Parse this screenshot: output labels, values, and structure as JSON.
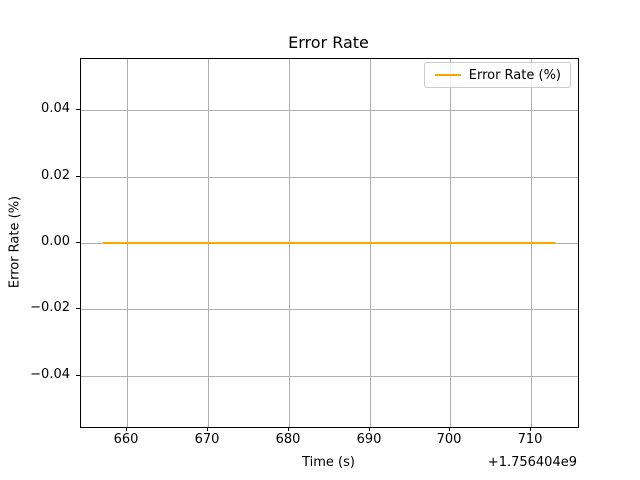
{
  "chart_data": {
    "type": "line",
    "title": "Error Rate",
    "xlabel": "Time (s)",
    "ylabel": "Error Rate (%)",
    "x_offset_text": "+1.756404e9",
    "xlim": [
      654.3,
      715.8
    ],
    "ylim": [
      -0.0555,
      0.0555
    ],
    "x_ticks": [
      660,
      670,
      680,
      690,
      700,
      710
    ],
    "x_ticklabels": [
      "660",
      "670",
      "680",
      "690",
      "700",
      "710"
    ],
    "y_ticks": [
      -0.04,
      -0.02,
      0.0,
      0.02,
      0.04
    ],
    "y_ticklabels": [
      "−0.04",
      "−0.02",
      "0.00",
      "0.02",
      "0.04"
    ],
    "grid": true,
    "grid_color": "#b0b0b0",
    "legend": {
      "position": "upper right",
      "entries": [
        {
          "label": "Error Rate (%)",
          "color": "#FFA500"
        }
      ]
    },
    "series": [
      {
        "name": "Error Rate (%)",
        "color": "#FFA500",
        "x": [
          657,
          713
        ],
        "y": [
          0.0,
          0.0
        ]
      }
    ]
  }
}
